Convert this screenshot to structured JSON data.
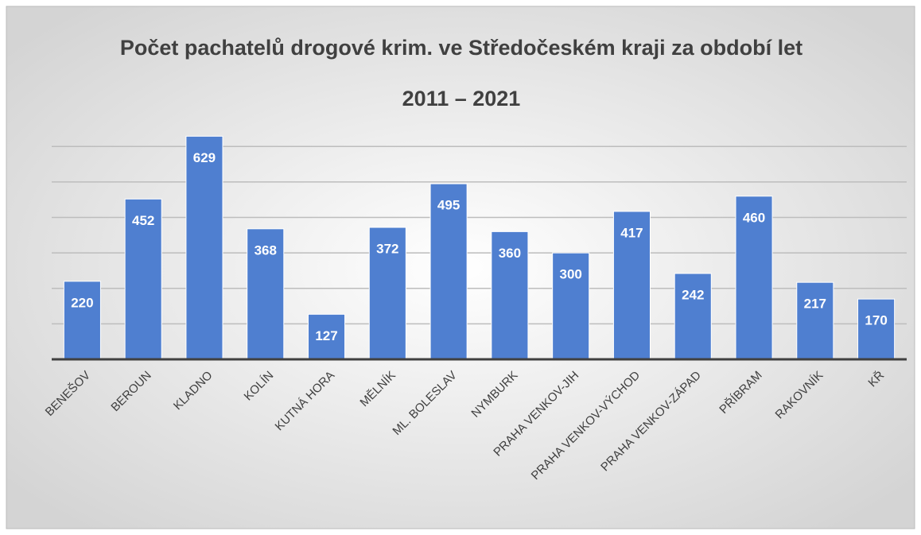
{
  "chart_data": {
    "type": "bar",
    "title": "Počet pachatelů drogové krim. ve Středočeském kraji za období let 2011 – 2021",
    "categories": [
      "BENEŠOV",
      "BEROUN",
      "KLADNO",
      "KOLÍN",
      "KUTNÁ HORA",
      "MĚLNÍK",
      "ML. BOLESLAV",
      "NYMBURK",
      "PRAHA VENKOV-JIH",
      "PRAHA VENKOV-VÝCHOD",
      "PRAHA VENKOV-ZÁPAD",
      "PŘÍBRAM",
      "RAKOVNÍK",
      "KŘ"
    ],
    "values": [
      220,
      452,
      629,
      368,
      127,
      372,
      495,
      360,
      300,
      417,
      242,
      460,
      217,
      170
    ],
    "color": "#4f7fd0",
    "ylim": [
      0,
      650
    ],
    "yticks": [
      0,
      100,
      200,
      300,
      400,
      500,
      600
    ],
    "grid": true
  }
}
